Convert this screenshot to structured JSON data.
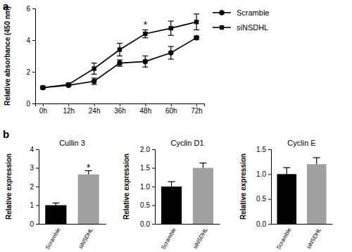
{
  "chart_data": [
    {
      "type": "line",
      "annotations": [
        {
          "text": "a"
        },
        {
          "text": "*",
          "category": "48h",
          "series": "siNSDHL"
        }
      ],
      "y_label": "Relative absorbance (450 nm)",
      "categories": [
        "0h",
        "12h",
        "24h",
        "36h",
        "48h",
        "60h",
        "72h"
      ],
      "series": [
        {
          "name": "Scramble",
          "color": "#000000",
          "marker": "circle",
          "values": [
            1.0,
            1.15,
            1.4,
            2.55,
            2.65,
            3.2,
            4.15
          ],
          "errors": [
            0.05,
            0.05,
            0.2,
            0.2,
            0.35,
            0.4,
            0.1
          ]
        },
        {
          "name": "siNSDHL",
          "color": "#000000",
          "marker": "square",
          "values": [
            1.0,
            1.2,
            2.2,
            3.4,
            4.4,
            4.75,
            5.15
          ],
          "errors": [
            0.05,
            0.05,
            0.35,
            0.4,
            0.25,
            0.45,
            0.5
          ]
        }
      ],
      "ylim": [
        0,
        6
      ],
      "yticks": [
        0,
        2,
        4,
        6
      ],
      "grid": false,
      "legend": "right"
    },
    {
      "type": "bar",
      "title": "Cullin 3",
      "annotations": [
        {
          "text": "b"
        },
        {
          "text": "*",
          "category": "siNSDHL"
        }
      ],
      "y_label": "Relative expression",
      "categories": [
        "Scramble",
        "siNSDHL"
      ],
      "values": [
        1.0,
        2.65
      ],
      "errors": [
        0.12,
        0.2
      ],
      "colors": [
        "#000000",
        "#a0a0a0"
      ],
      "ylim": [
        0,
        4
      ],
      "yticks": [
        0,
        1,
        2,
        3,
        4
      ],
      "grid": false
    },
    {
      "type": "bar",
      "title": "Cyclin D1",
      "y_label": "Relative expression",
      "categories": [
        "Scramble",
        "siNSDHL"
      ],
      "values": [
        1.0,
        1.5
      ],
      "errors": [
        0.13,
        0.13
      ],
      "colors": [
        "#000000",
        "#a0a0a0"
      ],
      "ylim": [
        0,
        2
      ],
      "yticks": [
        {
          "value": 0,
          "label": "0.0"
        },
        {
          "value": 0.5,
          "label": "0.5"
        },
        {
          "value": 1,
          "label": "1.0"
        },
        {
          "value": 1.5,
          "label": "1.5"
        },
        {
          "value": 2,
          "label": "2.0"
        }
      ],
      "grid": false
    },
    {
      "type": "bar",
      "title": "Cyclin E",
      "y_label": "Relative expression",
      "categories": [
        "Scramble",
        "siNSDHL"
      ],
      "values": [
        1.0,
        1.2
      ],
      "errors": [
        0.13,
        0.13
      ],
      "colors": [
        "#000000",
        "#a0a0a0"
      ],
      "ylim": [
        0,
        1.5
      ],
      "yticks": [
        {
          "value": 0,
          "label": "0.0"
        },
        {
          "value": 0.5,
          "label": "0.5"
        },
        {
          "value": 1,
          "label": "1.0"
        },
        {
          "value": 1.5,
          "label": "1.5"
        }
      ],
      "grid": false
    }
  ]
}
